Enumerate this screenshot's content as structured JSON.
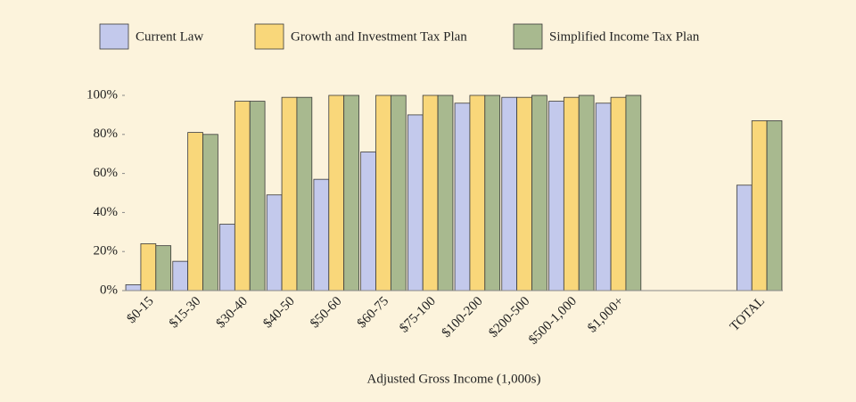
{
  "chart_data": {
    "type": "bar",
    "xlabel": "Adjusted Gross Income (1,000s)",
    "categories": [
      "$0-15",
      "$15-30",
      "$30-40",
      "$40-50",
      "$50-60",
      "$60-75",
      "$75-100",
      "$100-200",
      "$200-500",
      "$500-1,000",
      "$1,000+",
      null,
      null,
      "TOTAL"
    ],
    "series": [
      {
        "name": "Current Law",
        "color": "#c3c9ec",
        "values": [
          3,
          15,
          34,
          49,
          57,
          71,
          90,
          96,
          99,
          97,
          96,
          null,
          null,
          54
        ]
      },
      {
        "name": "Growth and Investment Tax Plan",
        "color": "#f9d77a",
        "values": [
          24,
          81,
          97,
          99,
          100,
          100,
          100,
          100,
          99,
          99,
          99,
          null,
          null,
          87
        ]
      },
      {
        "name": "Simplified Income Tax Plan",
        "color": "#a8b98f",
        "values": [
          23,
          80,
          97,
          99,
          100,
          100,
          100,
          100,
          100,
          100,
          100,
          null,
          null,
          87
        ]
      }
    ],
    "ylim": [
      0,
      100
    ],
    "yticks": [
      {
        "value": 0,
        "label": "0%"
      },
      {
        "value": 20,
        "label": "20%"
      },
      {
        "value": 40,
        "label": "40%"
      },
      {
        "value": 60,
        "label": "60%"
      },
      {
        "value": 80,
        "label": "80%"
      },
      {
        "value": 100,
        "label": "100%"
      }
    ],
    "legend": "top"
  }
}
